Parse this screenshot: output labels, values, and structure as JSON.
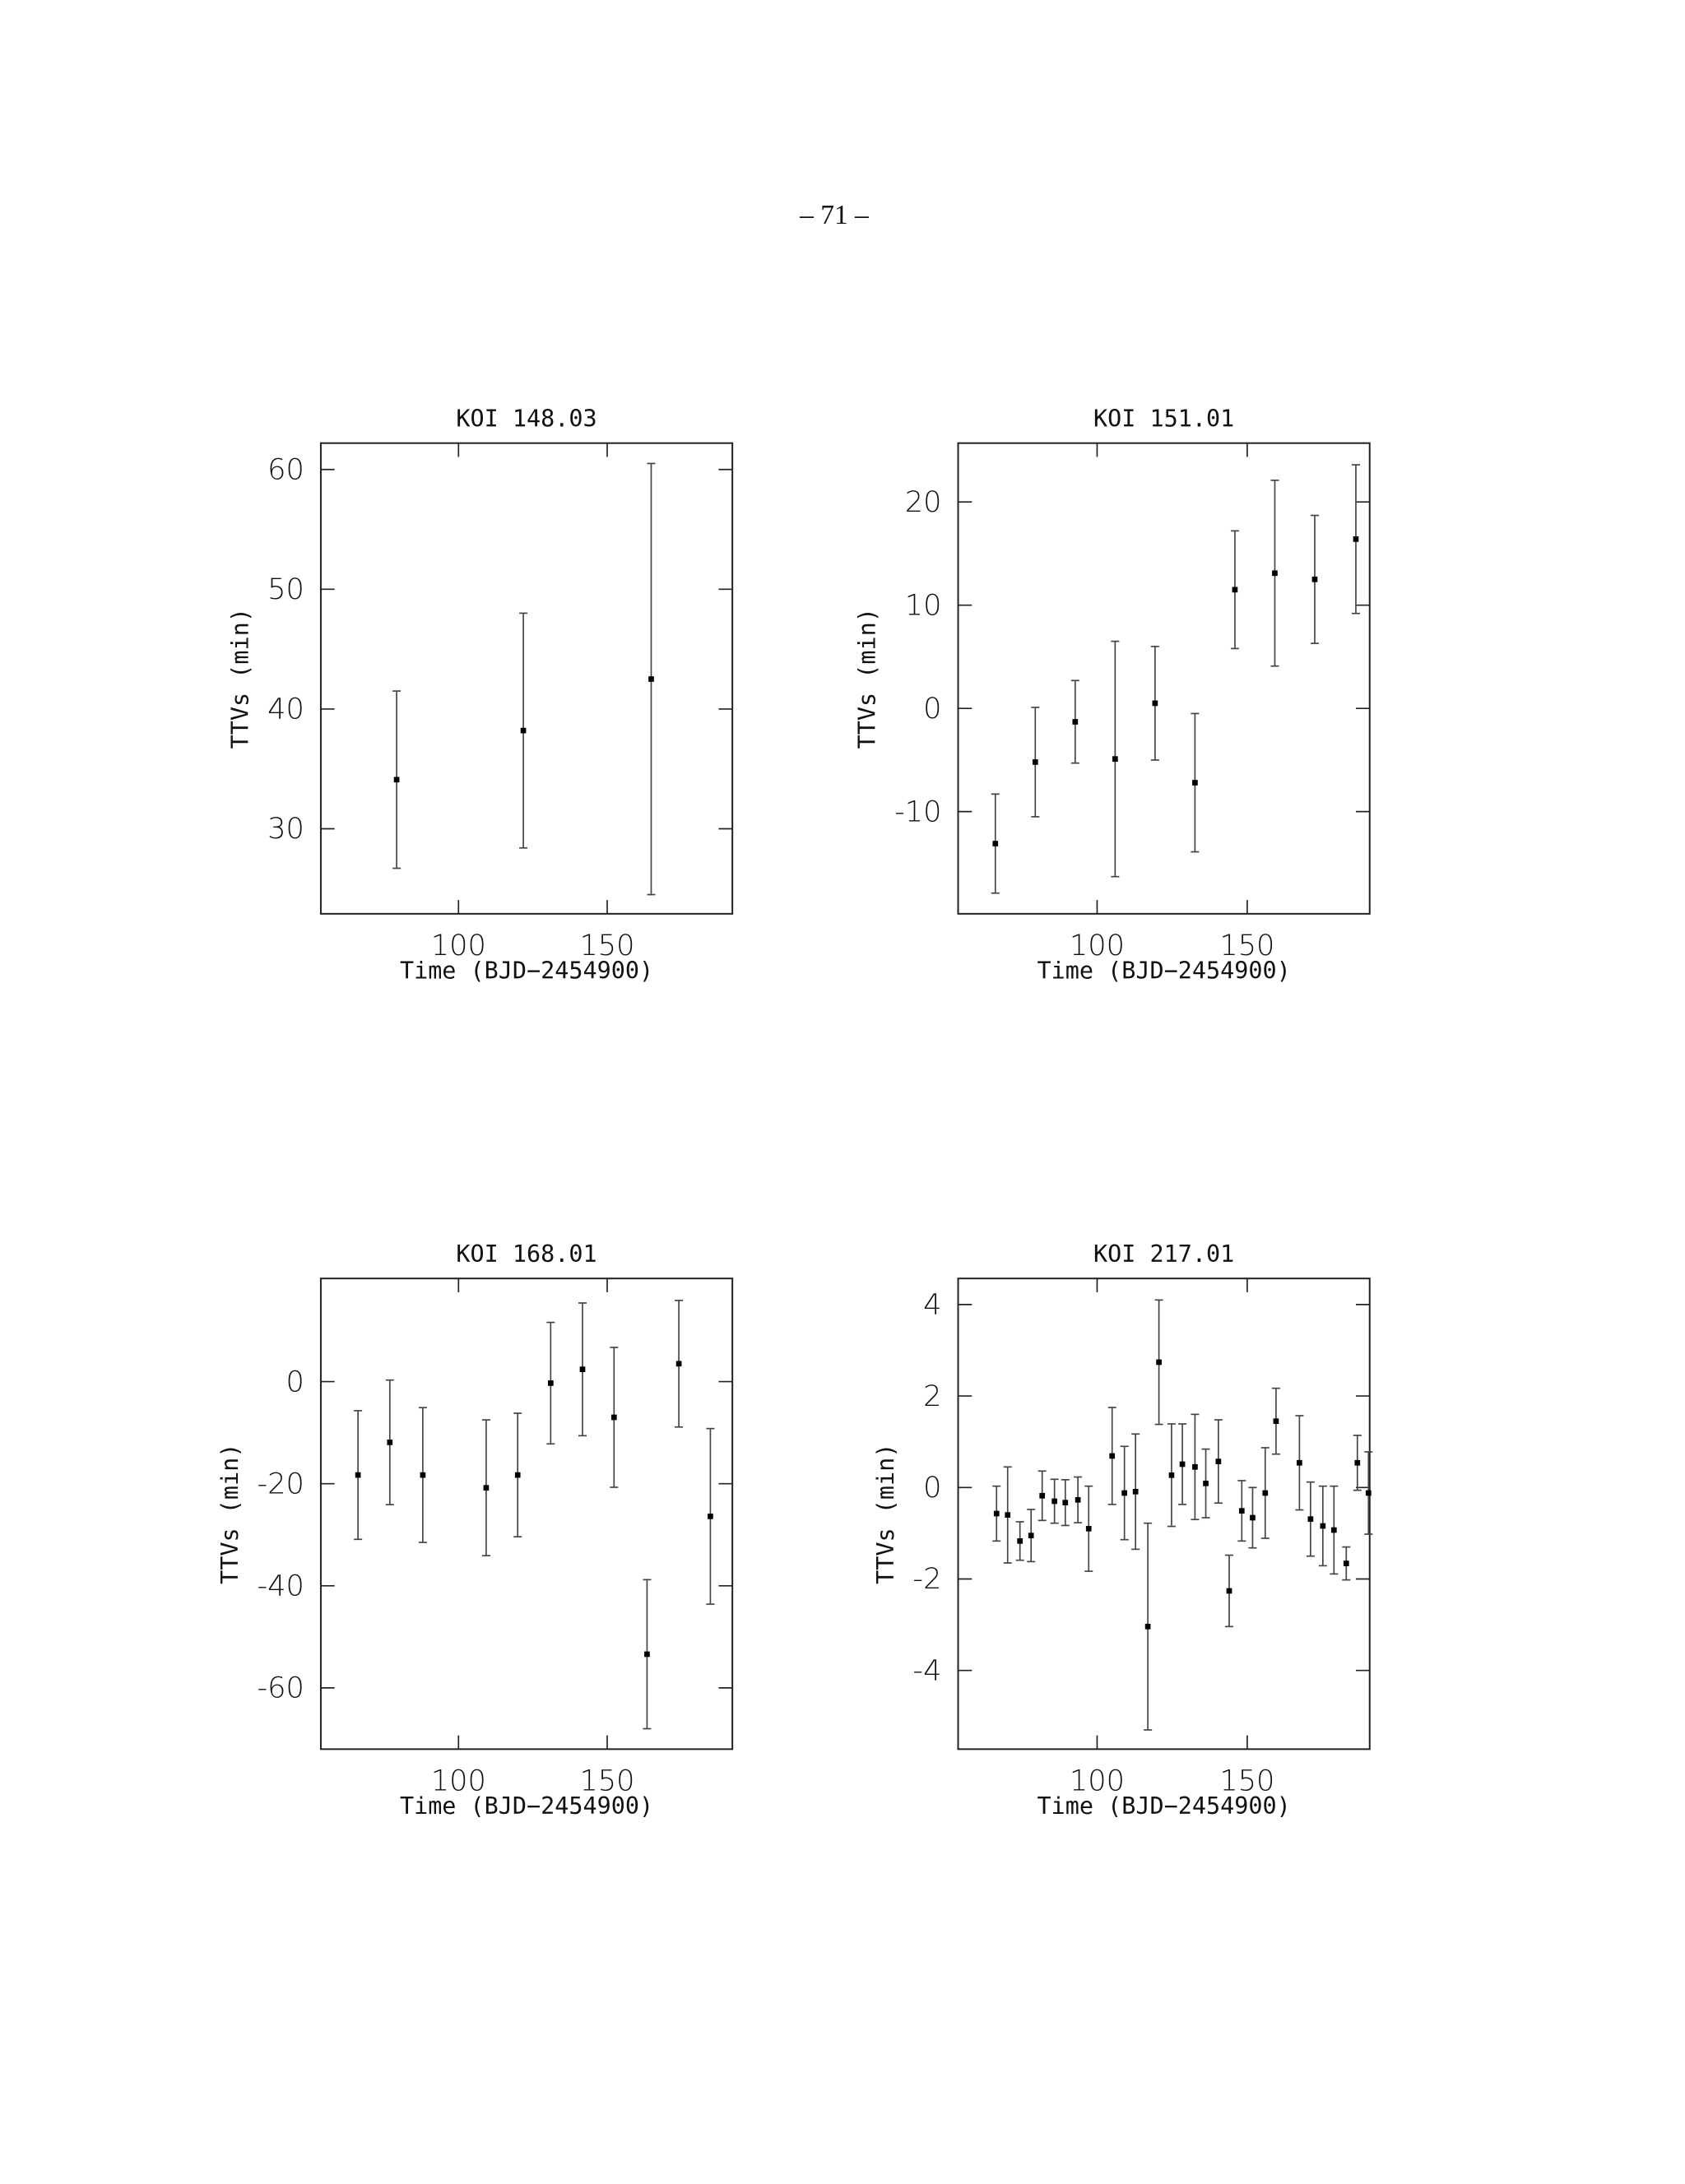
{
  "page_number": "– 71 –",
  "chart_data": [
    {
      "type": "scatter",
      "title": "KOI 148.03",
      "xlabel": "Time (BJD−2454900)",
      "ylabel": "TTVs (min)",
      "x": [
        79.2,
        121.8,
        164.8
      ],
      "values": [
        34.1,
        38.2,
        42.5
      ],
      "errors": [
        7.4,
        9.8,
        18.0
      ],
      "xlim": [
        53.7,
        192.1
      ],
      "xticks": [
        100,
        150
      ],
      "ylim": [
        22.9,
        62.2
      ],
      "yticks": [
        30,
        40,
        50,
        60
      ],
      "color": "#000000"
    },
    {
      "type": "scatter",
      "title": "KOI 151.01",
      "xlabel": "Time (BJD−2454900)",
      "ylabel": "TTVs (min)",
      "x": [
        66.1,
        79.4,
        92.7,
        106.0,
        119.3,
        132.6,
        145.9,
        159.2,
        172.5,
        186.2
      ],
      "values": [
        -13.1,
        -5.2,
        -1.3,
        -4.9,
        0.5,
        -7.2,
        11.5,
        13.1,
        12.5,
        16.4
      ],
      "errors": [
        4.8,
        5.3,
        4.0,
        11.4,
        5.5,
        6.7,
        5.7,
        9.0,
        6.2,
        7.2
      ],
      "xlim": [
        53.7,
        190.8
      ],
      "xticks": [
        100,
        150
      ],
      "ylim": [
        -19.9,
        25.7
      ],
      "yticks": [
        -10,
        0,
        10,
        20
      ],
      "color": "#000000"
    },
    {
      "type": "scatter",
      "title": "KOI 168.01",
      "xlabel": "Time (BJD−2454900)",
      "ylabel": "TTVs (min)",
      "x": [
        66.2,
        76.9,
        88.0,
        109.3,
        119.9,
        131.0,
        141.7,
        152.3,
        163.4,
        174.1,
        184.7
      ],
      "values": [
        -18.3,
        -11.9,
        -18.3,
        -20.8,
        -18.3,
        -0.3,
        2.4,
        -7.0,
        -53.4,
        3.5,
        -26.4
      ],
      "errors": [
        12.6,
        12.2,
        13.2,
        13.3,
        12.1,
        11.9,
        13.0,
        13.7,
        14.6,
        12.4,
        17.2
      ],
      "xlim": [
        53.7,
        192.1
      ],
      "xticks": [
        100,
        150
      ],
      "ylim": [
        -72.0,
        20.2
      ],
      "yticks": [
        -60,
        -40,
        -20,
        0
      ],
      "color": "#000000"
    },
    {
      "type": "scatter",
      "title": "KOI 217.01",
      "xlabel": "Time (BJD−2454900)",
      "ylabel": "TTVs (min)",
      "x": [
        66.5,
        70.2,
        74.3,
        78.0,
        81.7,
        85.8,
        89.4,
        93.6,
        97.2,
        105.0,
        109.1,
        112.8,
        116.9,
        120.6,
        124.8,
        128.4,
        132.6,
        136.2,
        140.4,
        144.0,
        148.2,
        151.8,
        156.0,
        159.6,
        167.4,
        171.1,
        175.2,
        178.9,
        183.0,
        186.7,
        190.4
      ],
      "values": [
        -0.57,
        -0.6,
        -1.17,
        -1.05,
        -0.18,
        -0.3,
        -0.33,
        -0.27,
        -0.9,
        0.69,
        -0.12,
        -0.09,
        -3.04,
        2.74,
        0.27,
        0.51,
        0.45,
        0.09,
        0.57,
        -2.26,
        -0.51,
        -0.66,
        -0.12,
        1.45,
        0.54,
        -0.69,
        -0.84,
        -0.93,
        -1.66,
        0.54,
        -0.12
      ],
      "errors": [
        0.6,
        1.05,
        0.42,
        0.57,
        0.54,
        0.48,
        0.5,
        0.5,
        0.93,
        1.06,
        1.02,
        1.26,
        2.26,
        1.36,
        1.12,
        0.88,
        1.15,
        0.75,
        0.91,
        0.78,
        0.66,
        0.66,
        0.99,
        0.72,
        1.03,
        0.81,
        0.87,
        0.96,
        0.36,
        0.6,
        0.9
      ],
      "xlim": [
        53.7,
        190.8
      ],
      "xticks": [
        100,
        150
      ],
      "ylim": [
        -5.72,
        4.57
      ],
      "yticks": [
        -4,
        -2,
        0,
        2,
        4
      ],
      "color": "#000000"
    }
  ]
}
